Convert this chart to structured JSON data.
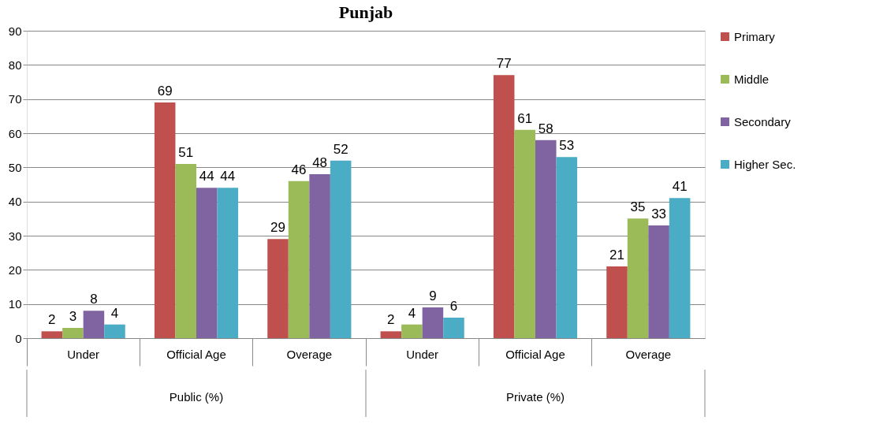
{
  "chart_data": {
    "type": "bar",
    "title": "Punjab",
    "categories": [
      "Under",
      "Official Age",
      "Overage",
      "Under",
      "Official Age",
      "Overage"
    ],
    "series": [
      {
        "name": "Primary",
        "color": "#c0504d",
        "values": [
          2,
          69,
          29,
          2,
          77,
          21
        ]
      },
      {
        "name": "Middle",
        "color": "#9bbb59",
        "values": [
          3,
          51,
          46,
          4,
          61,
          35
        ]
      },
      {
        "name": "Secondary",
        "color": "#8064a2",
        "values": [
          8,
          44,
          48,
          9,
          58,
          33
        ]
      },
      {
        "name": "Higher Sec.",
        "color": "#4bacc6",
        "values": [
          4,
          44,
          52,
          6,
          53,
          41
        ]
      }
    ],
    "ylim": [
      0,
      90
    ],
    "yticks": [
      0,
      10,
      20,
      30,
      40,
      50,
      60,
      70,
      80,
      90
    ],
    "grid": "y",
    "legend": "right",
    "data_labels": true,
    "annotations": [
      "Public (%)",
      "Private (%)"
    ]
  }
}
